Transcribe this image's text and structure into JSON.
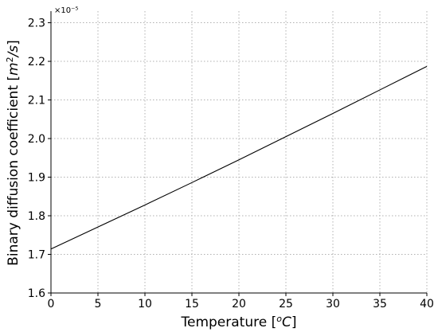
{
  "chart_data": {
    "type": "line",
    "title": "",
    "xlabel": "Temperature [°C]",
    "ylabel": "Binary diffusion coefficient [m²/s]",
    "offset_label": "×10⁻⁵",
    "xlim": [
      0,
      40
    ],
    "ylim": [
      1.6,
      2.33
    ],
    "x_ticks": [
      0,
      5,
      10,
      15,
      20,
      25,
      30,
      35,
      40
    ],
    "y_ticks": [
      1.6,
      1.7,
      1.8,
      1.9,
      2.0,
      2.1,
      2.2,
      2.3
    ],
    "grid": true,
    "series": [
      {
        "color": "#000000",
        "x": [
          0,
          5,
          10,
          15,
          20,
          25,
          30,
          35,
          40
        ],
        "y": [
          1.714,
          1.771,
          1.828,
          1.886,
          1.945,
          2.005,
          2.065,
          2.126,
          2.187
        ]
      }
    ]
  }
}
